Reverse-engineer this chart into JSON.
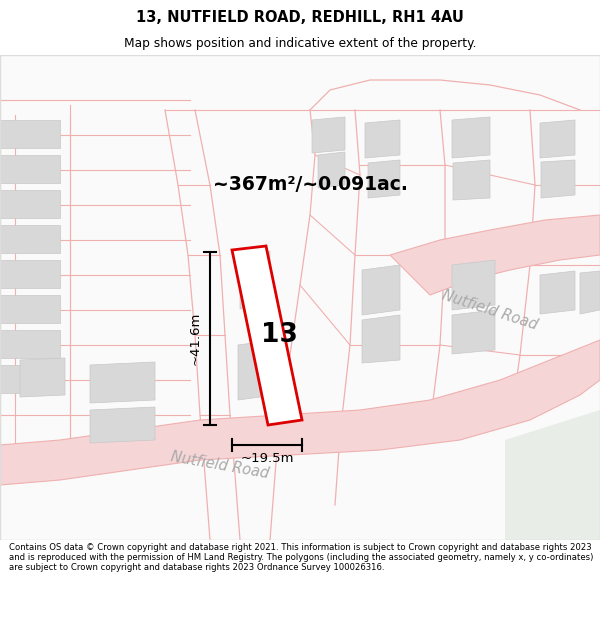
{
  "title": "13, NUTFIELD ROAD, REDHILL, RH1 4AU",
  "subtitle": "Map shows position and indicative extent of the property.",
  "area_label": "~367m²/~0.091ac.",
  "property_number": "13",
  "width_label": "~19.5m",
  "height_label": "~41.6m",
  "road_label1": "Nutfield Road",
  "road_label2": "Nutfield Road",
  "copyright_text": "Contains OS data © Crown copyright and database right 2021. This information is subject to Crown copyright and database rights 2023 and is reproduced with the permission of HM Land Registry. The polygons (including the associated geometry, namely x, y co-ordinates) are subject to Crown copyright and database rights 2023 Ordnance Survey 100026316.",
  "road_line_color": "#f0b0b0",
  "road_fill_color": "#f5d5d5",
  "building_color": "#d8d8d8",
  "building_edge": "#c8c8c8",
  "property_color": "#dd0000",
  "green_color": "#e8ede8",
  "map_bg": "#ffffff",
  "figsize": [
    6.0,
    6.25
  ],
  "dpi": 100
}
